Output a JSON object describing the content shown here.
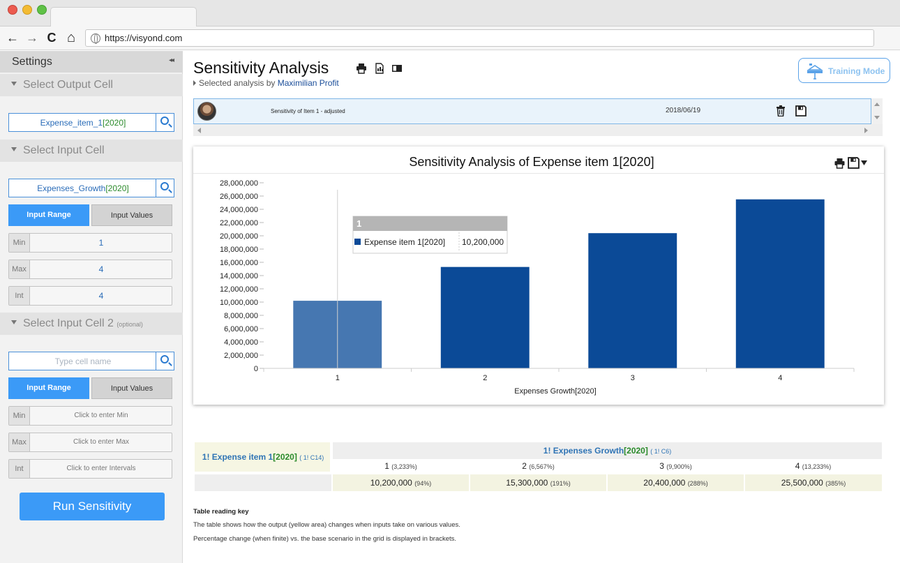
{
  "browser": {
    "url": "https://visyond.com",
    "nav_back": "←",
    "nav_forward": "→",
    "nav_reload": "C",
    "nav_home": "⌂"
  },
  "sidebar": {
    "title": "Settings",
    "collapse_icon": "◂◂",
    "output_section": {
      "title": "Select Output Cell",
      "cell_name": "Expense_item_1",
      "cell_year": "[2020]"
    },
    "input_section": {
      "title": "Select Input Cell",
      "cell_name": "Expenses_Growth",
      "cell_year": "[2020]",
      "tab_range": "Input Range",
      "tab_values": "Input Values",
      "min_label": "Min",
      "min_value": "1",
      "max_label": "Max",
      "max_value": "4",
      "int_label": "Int",
      "int_value": "4"
    },
    "input2_section": {
      "title": "Select Input Cell 2",
      "optional": "(optional)",
      "placeholder": "Type cell name",
      "tab_range": "Input Range",
      "tab_values": "Input Values",
      "min_label": "Min",
      "min_placeholder": "Click to enter Min",
      "max_label": "Max",
      "max_placeholder": "Click to enter Max",
      "int_label": "Int",
      "int_placeholder": "Click to enter Intervals"
    },
    "run_button": "Run Sensitivity"
  },
  "main": {
    "title": "Sensitivity Analysis",
    "selected_by_prefix": "Selected analysis by",
    "selected_by_name": "Maximilian Profit",
    "training_mode": "Training Mode",
    "analysis_row": {
      "name": "Sensitivity of Item 1 - adjusted",
      "date": "2018/06/19"
    }
  },
  "chart_data": {
    "type": "bar",
    "title": "Sensitivity Analysis of Expense item 1[2020]",
    "xlabel": "Expenses Growth[2020]",
    "ylabel": "",
    "categories": [
      "1",
      "2",
      "3",
      "4"
    ],
    "series": [
      {
        "name": "Expense item 1[2020]",
        "values": [
          10200000,
          15300000,
          20400000,
          25500000
        ]
      }
    ],
    "ylim": [
      0,
      28000000
    ],
    "yticks": [
      0,
      2000000,
      4000000,
      6000000,
      8000000,
      10000000,
      12000000,
      14000000,
      16000000,
      18000000,
      20000000,
      22000000,
      24000000,
      26000000,
      28000000
    ],
    "ytick_labels": [
      "0",
      "2,000,000",
      "4,000,000",
      "6,000,000",
      "8,000,000",
      "10,000,000",
      "12,000,000",
      "14,000,000",
      "16,000,000",
      "18,000,000",
      "20,000,000",
      "22,000,000",
      "24,000,000",
      "26,000,000",
      "28,000,000"
    ],
    "bar_color": "#0b4a97",
    "highlight_color": "#4677b1",
    "highlighted_index": 0,
    "tooltip": {
      "header": "1",
      "series": "Expense item 1[2020]",
      "value": "10,200,000"
    },
    "grid": false
  },
  "table": {
    "output_prefix": "1!",
    "output_name": "Expense item 1",
    "output_year": "[2020]",
    "output_ref_prefix": "1!",
    "output_ref": "C14",
    "input_prefix": "1!",
    "input_name": "Expenses Growth",
    "input_year": "[2020]",
    "input_ref_prefix": "1!",
    "input_ref": "C6",
    "columns": [
      {
        "value": "1",
        "pct": "(3,233%)"
      },
      {
        "value": "2",
        "pct": "(6,567%)"
      },
      {
        "value": "3",
        "pct": "(9,900%)"
      },
      {
        "value": "4",
        "pct": "(13,233%)"
      }
    ],
    "results": [
      {
        "value": "10,200,000",
        "pct": "(94%)"
      },
      {
        "value": "15,300,000",
        "pct": "(191%)"
      },
      {
        "value": "20,400,000",
        "pct": "(288%)"
      },
      {
        "value": "25,500,000",
        "pct": "(385%)"
      }
    ]
  },
  "key": {
    "heading": "Table reading key",
    "line1": "The table shows how the output (yellow area) changes when inputs take on various values.",
    "line2": "Percentage change (when finite) vs. the base scenario in the grid is displayed in brackets."
  }
}
